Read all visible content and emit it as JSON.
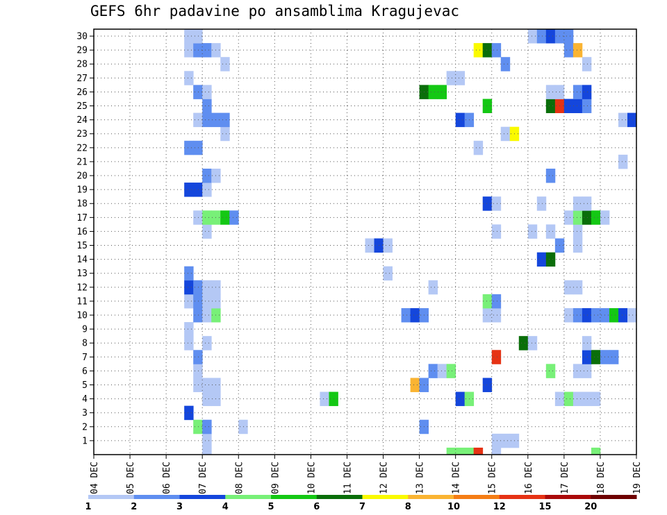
{
  "chart_data": {
    "type": "heatmap",
    "title": "GEFS 6hr padavine po ansamblima Kragujevac",
    "xlabel": "",
    "ylabel": "",
    "x_ticks": [
      "04 DEC",
      "05 DEC",
      "06 DEC",
      "07 DEC",
      "08 DEC",
      "09 DEC",
      "10 DEC",
      "11 DEC",
      "12 DEC",
      "13 DEC",
      "14 DEC",
      "15 DEC",
      "16 DEC",
      "17 DEC",
      "18 DEC",
      "19 DEC"
    ],
    "y_ticks": [
      "1",
      "2",
      "3",
      "4",
      "5",
      "6",
      "7",
      "8",
      "9",
      "10",
      "11",
      "12",
      "13",
      "14",
      "15",
      "16",
      "17",
      "18",
      "19",
      "20",
      "21",
      "22",
      "23",
      "24",
      "25",
      "26",
      "27",
      "28",
      "29",
      "30"
    ],
    "x_range_days": [
      0,
      15
    ],
    "y_range_members": [
      0,
      30
    ],
    "time_step_hours": 6,
    "grid": true,
    "legend_position": "bottom",
    "colorbar": {
      "labels": [
        "1",
        "2",
        "3",
        "4",
        "5",
        "6",
        "7",
        "8",
        "10",
        "12",
        "15",
        "20"
      ],
      "colors": [
        "#b4c8f5",
        "#5f8ef0",
        "#1446dc",
        "#78f078",
        "#14c814",
        "#0a6e0a",
        "#fafa00",
        "#fab432",
        "#f57d14",
        "#e63214",
        "#aa0a0a",
        "#6e0000"
      ]
    },
    "cells_note": "each cell: member (y), time step index from 04 DEC 00z (x), colour class index into colorbar",
    "cells": [
      [
        0,
        12,
        0
      ],
      [
        0,
        39,
        3
      ],
      [
        0,
        40,
        3
      ],
      [
        0,
        41,
        3
      ],
      [
        0,
        42,
        9
      ],
      [
        0,
        44,
        0
      ],
      [
        0,
        55,
        3
      ],
      [
        1,
        12,
        0
      ],
      [
        1,
        44,
        0
      ],
      [
        1,
        45,
        0
      ],
      [
        1,
        46,
        0
      ],
      [
        2,
        11,
        3
      ],
      [
        2,
        12,
        1
      ],
      [
        2,
        16,
        0
      ],
      [
        2,
        36,
        1
      ],
      [
        3,
        10,
        2
      ],
      [
        4,
        12,
        0
      ],
      [
        4,
        13,
        0
      ],
      [
        4,
        25,
        0
      ],
      [
        4,
        26,
        4
      ],
      [
        4,
        40,
        2
      ],
      [
        4,
        41,
        3
      ],
      [
        4,
        51,
        0
      ],
      [
        4,
        52,
        3
      ],
      [
        4,
        53,
        0
      ],
      [
        4,
        54,
        0
      ],
      [
        4,
        55,
        0
      ],
      [
        5,
        11,
        0
      ],
      [
        5,
        12,
        0
      ],
      [
        5,
        13,
        0
      ],
      [
        5,
        35,
        7
      ],
      [
        5,
        36,
        1
      ],
      [
        5,
        43,
        2
      ],
      [
        6,
        11,
        0
      ],
      [
        6,
        37,
        1
      ],
      [
        6,
        38,
        0
      ],
      [
        6,
        39,
        3
      ],
      [
        6,
        50,
        3
      ],
      [
        6,
        53,
        0
      ],
      [
        6,
        54,
        0
      ],
      [
        7,
        11,
        1
      ],
      [
        7,
        44,
        9
      ],
      [
        7,
        54,
        2
      ],
      [
        7,
        55,
        5
      ],
      [
        7,
        56,
        1
      ],
      [
        7,
        57,
        1
      ],
      [
        8,
        10,
        0
      ],
      [
        8,
        12,
        0
      ],
      [
        8,
        47,
        5
      ],
      [
        8,
        48,
        0
      ],
      [
        8,
        54,
        0
      ],
      [
        9,
        10,
        0
      ],
      [
        10,
        11,
        1
      ],
      [
        10,
        12,
        0
      ],
      [
        10,
        13,
        3
      ],
      [
        10,
        34,
        1
      ],
      [
        10,
        35,
        2
      ],
      [
        10,
        36,
        1
      ],
      [
        10,
        43,
        0
      ],
      [
        10,
        44,
        0
      ],
      [
        10,
        52,
        0
      ],
      [
        10,
        53,
        1
      ],
      [
        10,
        54,
        2
      ],
      [
        10,
        55,
        1
      ],
      [
        10,
        56,
        1
      ],
      [
        10,
        57,
        4
      ],
      [
        10,
        58,
        2
      ],
      [
        10,
        59,
        0
      ],
      [
        11,
        10,
        0
      ],
      [
        11,
        11,
        1
      ],
      [
        11,
        12,
        0
      ],
      [
        11,
        13,
        0
      ],
      [
        11,
        43,
        3
      ],
      [
        11,
        44,
        1
      ],
      [
        12,
        10,
        2
      ],
      [
        12,
        11,
        1
      ],
      [
        12,
        12,
        0
      ],
      [
        12,
        13,
        0
      ],
      [
        12,
        37,
        0
      ],
      [
        12,
        52,
        0
      ],
      [
        12,
        53,
        0
      ],
      [
        13,
        10,
        1
      ],
      [
        13,
        32,
        0
      ],
      [
        14,
        49,
        2
      ],
      [
        14,
        50,
        5
      ],
      [
        15,
        30,
        0
      ],
      [
        15,
        31,
        2
      ],
      [
        15,
        32,
        0
      ],
      [
        15,
        51,
        1
      ],
      [
        15,
        53,
        0
      ],
      [
        16,
        12,
        0
      ],
      [
        16,
        44,
        0
      ],
      [
        16,
        48,
        0
      ],
      [
        16,
        50,
        0
      ],
      [
        16,
        53,
        0
      ],
      [
        17,
        11,
        0
      ],
      [
        17,
        12,
        3
      ],
      [
        17,
        13,
        3
      ],
      [
        17,
        14,
        4
      ],
      [
        17,
        15,
        1
      ],
      [
        17,
        52,
        0
      ],
      [
        17,
        53,
        3
      ],
      [
        17,
        54,
        5
      ],
      [
        17,
        55,
        4
      ],
      [
        17,
        56,
        0
      ],
      [
        18,
        43,
        2
      ],
      [
        18,
        44,
        0
      ],
      [
        18,
        49,
        0
      ],
      [
        18,
        53,
        0
      ],
      [
        18,
        54,
        0
      ],
      [
        19,
        10,
        2
      ],
      [
        19,
        11,
        2
      ],
      [
        19,
        12,
        0
      ],
      [
        20,
        12,
        1
      ],
      [
        20,
        13,
        0
      ],
      [
        20,
        50,
        1
      ],
      [
        21,
        58,
        0
      ],
      [
        22,
        10,
        1
      ],
      [
        22,
        11,
        1
      ],
      [
        22,
        42,
        0
      ],
      [
        23,
        14,
        0
      ],
      [
        23,
        45,
        0
      ],
      [
        23,
        46,
        6
      ],
      [
        24,
        11,
        0
      ],
      [
        24,
        12,
        1
      ],
      [
        24,
        13,
        1
      ],
      [
        24,
        14,
        1
      ],
      [
        24,
        40,
        2
      ],
      [
        24,
        41,
        1
      ],
      [
        24,
        58,
        0
      ],
      [
        24,
        59,
        2
      ],
      [
        25,
        12,
        1
      ],
      [
        25,
        43,
        4
      ],
      [
        25,
        50,
        5
      ],
      [
        25,
        51,
        9
      ],
      [
        25,
        52,
        2
      ],
      [
        25,
        53,
        2
      ],
      [
        25,
        54,
        1
      ],
      [
        26,
        11,
        1
      ],
      [
        26,
        12,
        0
      ],
      [
        26,
        36,
        5
      ],
      [
        26,
        37,
        4
      ],
      [
        26,
        38,
        4
      ],
      [
        26,
        50,
        0
      ],
      [
        26,
        51,
        0
      ],
      [
        26,
        53,
        1
      ],
      [
        26,
        54,
        2
      ],
      [
        27,
        10,
        0
      ],
      [
        27,
        39,
        0
      ],
      [
        27,
        40,
        0
      ],
      [
        28,
        14,
        0
      ],
      [
        28,
        45,
        1
      ],
      [
        28,
        54,
        0
      ],
      [
        29,
        10,
        0
      ],
      [
        29,
        11,
        1
      ],
      [
        29,
        12,
        1
      ],
      [
        29,
        13,
        0
      ],
      [
        29,
        42,
        6
      ],
      [
        29,
        43,
        5
      ],
      [
        29,
        44,
        1
      ],
      [
        29,
        52,
        1
      ],
      [
        29,
        53,
        7
      ],
      [
        30,
        10,
        0
      ],
      [
        30,
        11,
        0
      ],
      [
        30,
        48,
        0
      ],
      [
        30,
        49,
        1
      ],
      [
        30,
        50,
        2
      ],
      [
        30,
        51,
        1
      ],
      [
        30,
        52,
        1
      ]
    ]
  }
}
